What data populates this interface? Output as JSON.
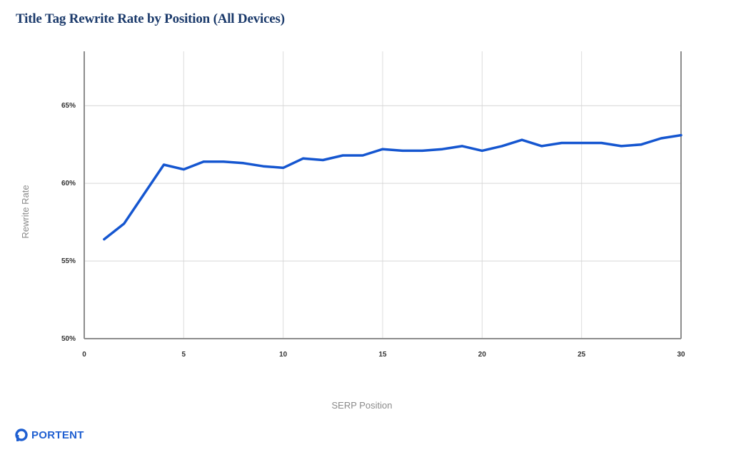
{
  "chart_data": {
    "type": "line",
    "title": "Title Tag Rewrite Rate by Position (All Devices)",
    "xlabel": "SERP Position",
    "ylabel": "Rewrite Rate",
    "xlim": [
      0,
      30
    ],
    "ylim": [
      50,
      68.5
    ],
    "x_ticks": [
      0,
      5,
      10,
      15,
      20,
      25,
      30
    ],
    "x_tick_labels": [
      "0",
      "5",
      "10",
      "15",
      "20",
      "25",
      "30"
    ],
    "y_ticks": [
      50,
      55,
      60,
      65
    ],
    "y_tick_labels": [
      "50%",
      "55%",
      "60%",
      "65%"
    ],
    "grid": true,
    "series": [
      {
        "color": "#1556d0",
        "x": [
          1,
          2,
          3,
          4,
          5,
          6,
          7,
          8,
          9,
          10,
          11,
          12,
          13,
          14,
          15,
          16,
          17,
          18,
          19,
          20,
          21,
          22,
          23,
          24,
          25,
          26,
          27,
          28,
          29,
          30
        ],
        "values": [
          56.4,
          57.4,
          59.3,
          61.2,
          60.9,
          61.4,
          61.4,
          61.3,
          61.1,
          61.0,
          61.6,
          61.5,
          61.8,
          61.8,
          62.2,
          62.1,
          62.1,
          62.2,
          62.4,
          62.1,
          62.4,
          62.8,
          62.4,
          62.6,
          62.6,
          62.6,
          62.4,
          62.5,
          62.9,
          63.1
        ]
      }
    ]
  },
  "brand": {
    "logo_text": "PORTENT",
    "color": "#1f5fd1"
  }
}
